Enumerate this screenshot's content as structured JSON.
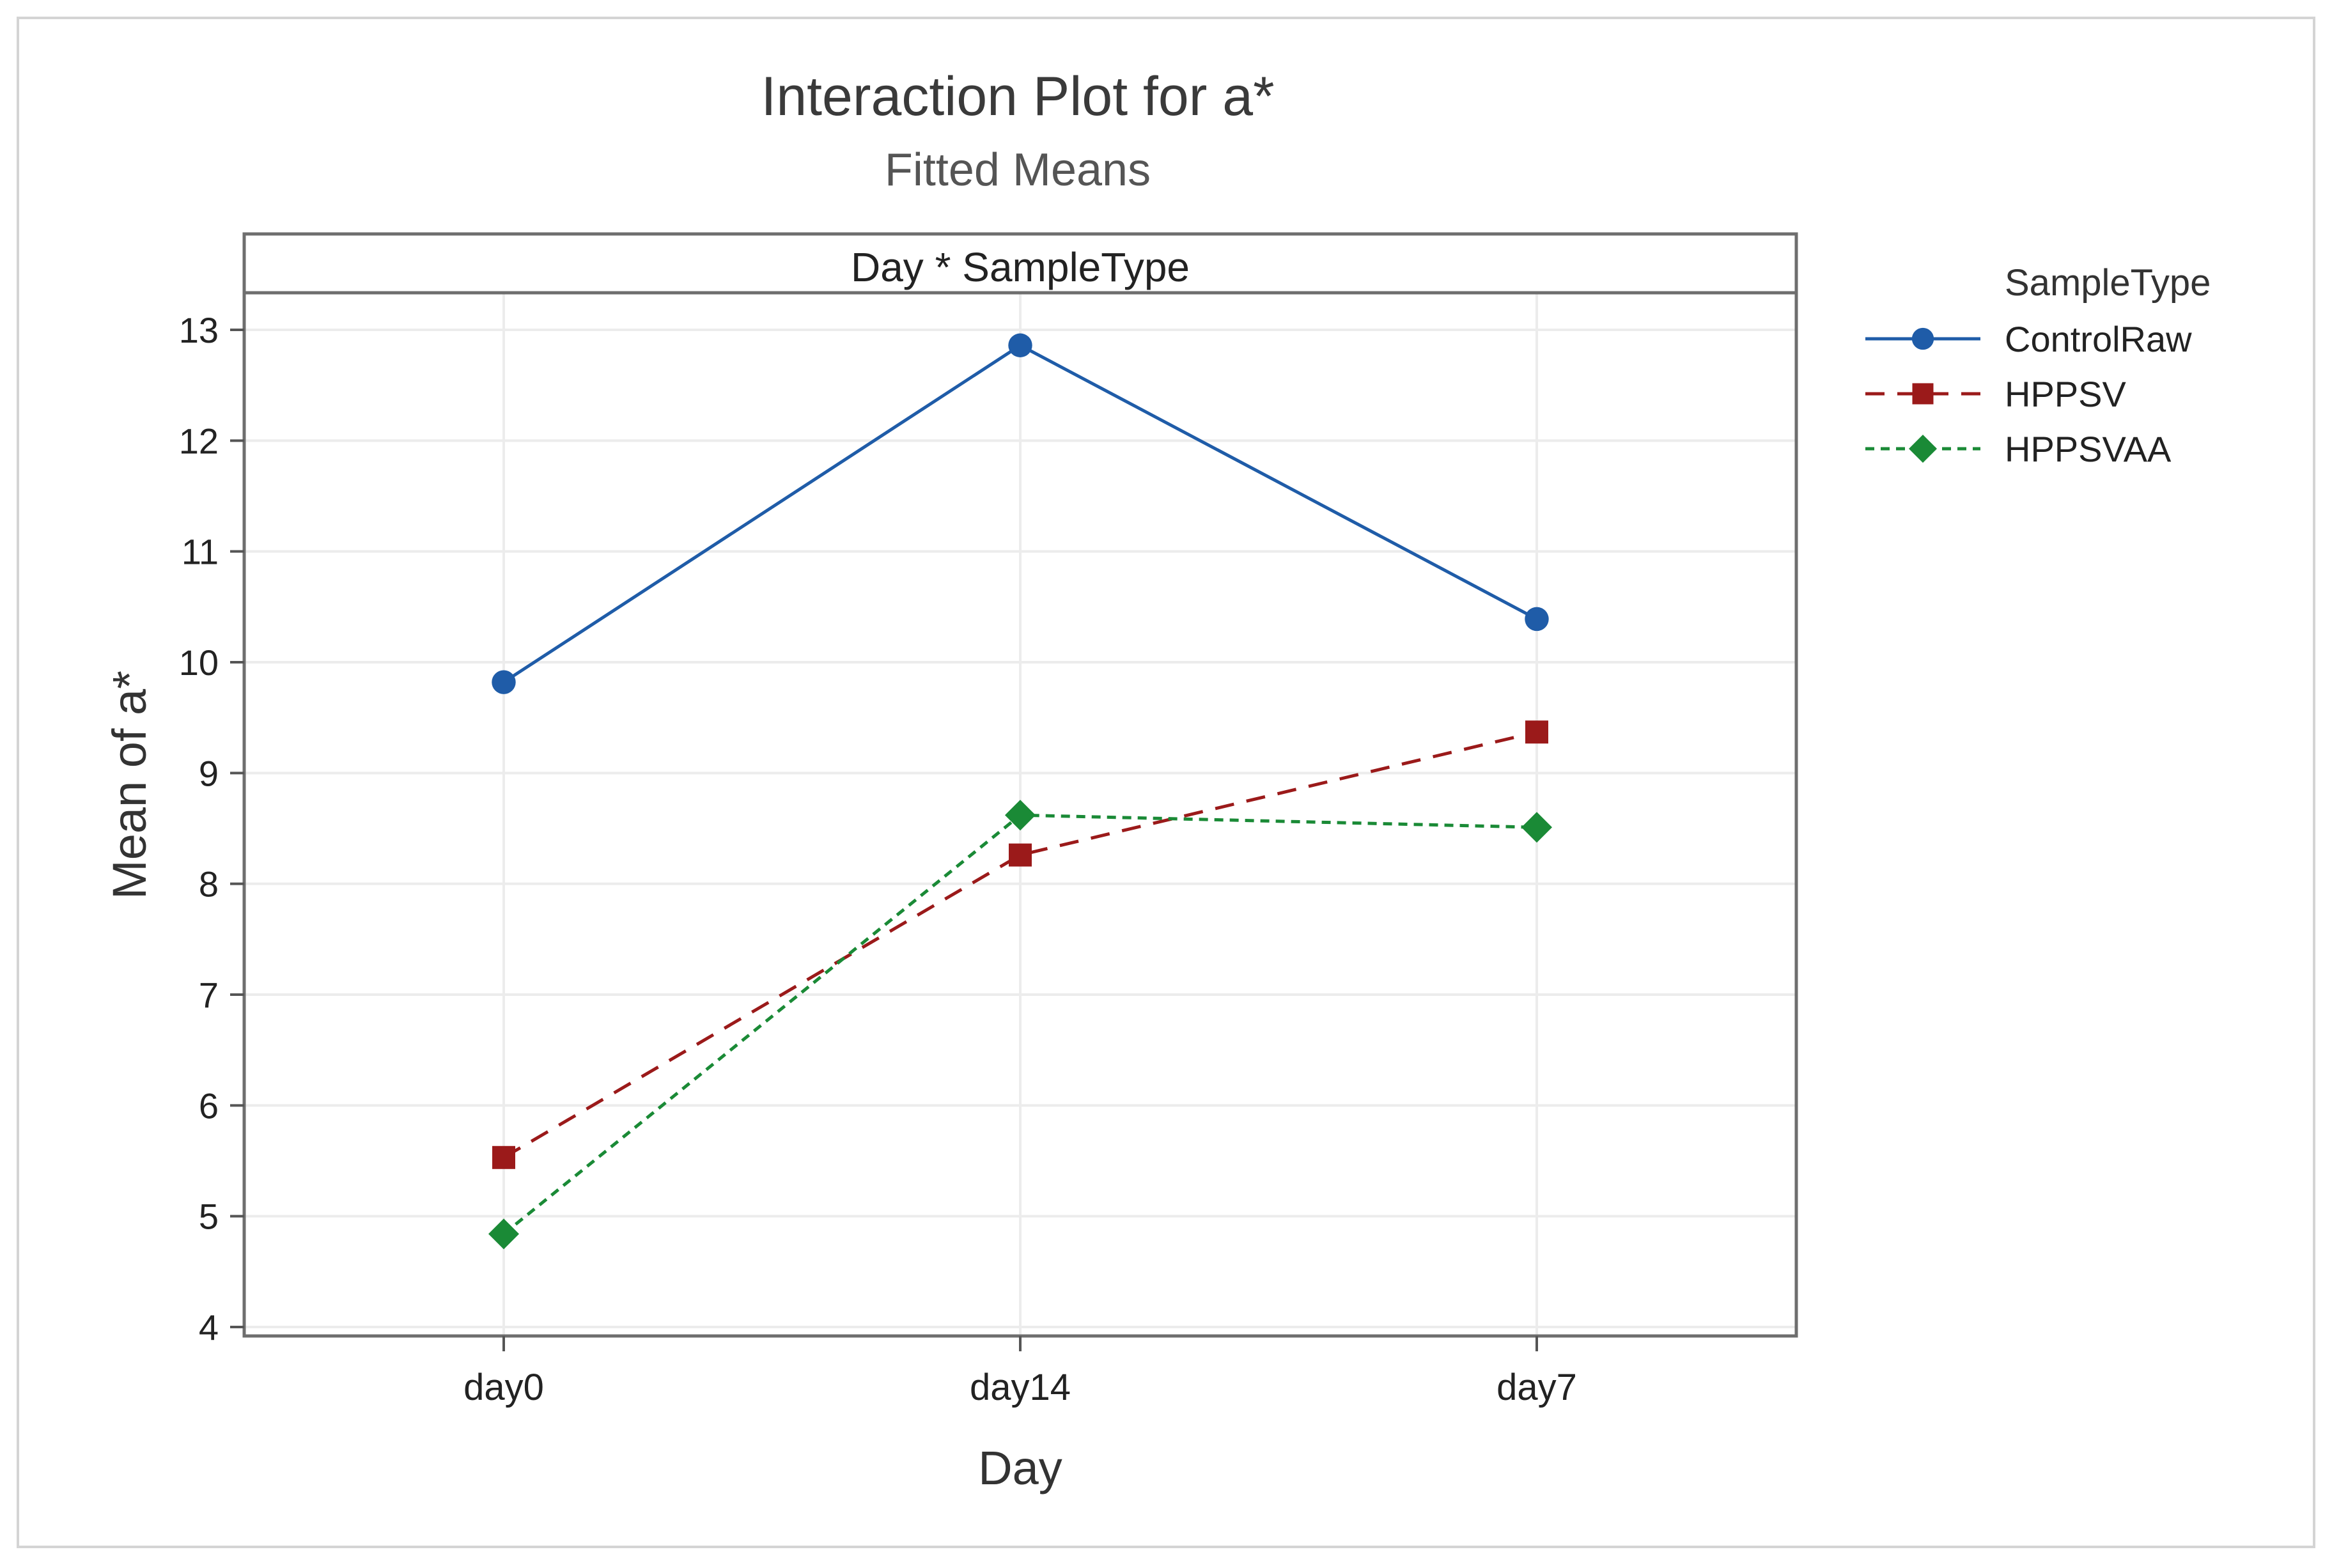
{
  "chart_data": {
    "type": "line",
    "title": "Interaction Plot for a*",
    "subtitle": "Fitted Means",
    "panel_label": "Day * SampleType",
    "xlabel": "Day",
    "ylabel": "Mean of a*",
    "categories": [
      "day0",
      "day14",
      "day7"
    ],
    "ylim": [
      4,
      13
    ],
    "yticks": [
      4,
      5,
      6,
      7,
      8,
      9,
      10,
      11,
      12,
      13
    ],
    "grid": true,
    "legend": {
      "title": "SampleType",
      "position": "right"
    },
    "series": [
      {
        "name": "ControlRaw",
        "values": [
          9.82,
          12.86,
          10.39
        ],
        "color": "#1f5ca8",
        "marker": "circle",
        "line": "solid"
      },
      {
        "name": "HPPSV",
        "values": [
          5.53,
          8.26,
          9.37
        ],
        "color": "#9b1a1a",
        "marker": "square",
        "line": "dashed"
      },
      {
        "name": "HPPSVAA",
        "values": [
          4.84,
          8.62,
          8.51
        ],
        "color": "#1a8a36",
        "marker": "diamond",
        "line": "dotted"
      }
    ]
  }
}
